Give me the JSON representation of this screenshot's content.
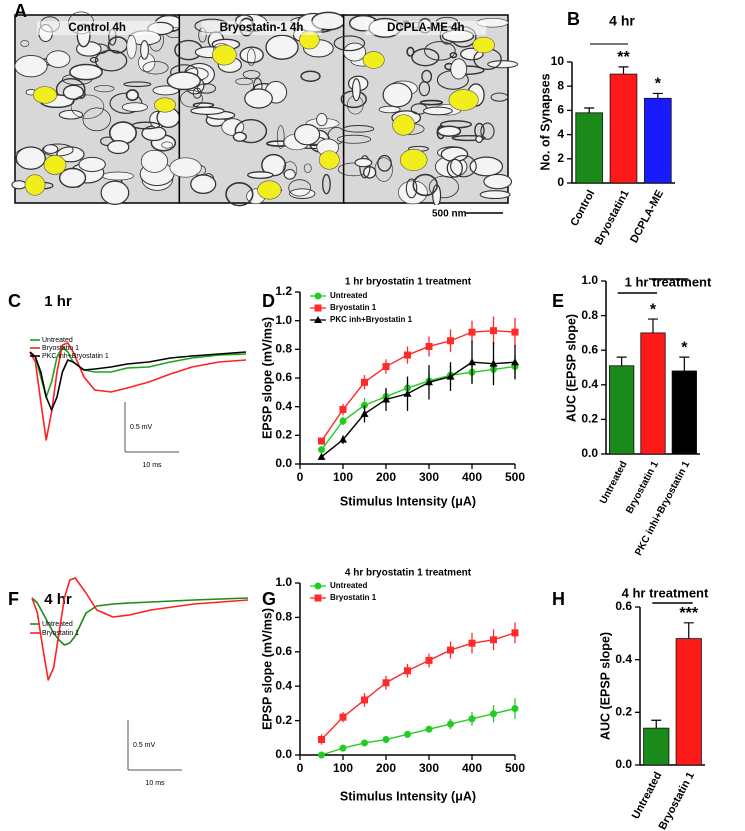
{
  "chart_data": [
    {
      "panel": "A",
      "type": "image",
      "labels": [
        "Control 4h",
        "Bryostatin-1 4h",
        "DCPLA-ME 4h"
      ],
      "scale_label": "500 nm"
    },
    {
      "panel": "B",
      "type": "bar",
      "title": "4 hr",
      "ylabel": "No. of Synapses",
      "categories": [
        "Control",
        "Bryostatin1",
        "DCPLA-ME"
      ],
      "values": [
        5.8,
        9.0,
        7.0
      ],
      "errors": [
        0.4,
        0.6,
        0.4
      ],
      "colors": [
        "#1a8a1a",
        "#ff1a1a",
        "#1a1aff"
      ],
      "value_annotations": [
        null,
        "**",
        "*"
      ],
      "ylim": [
        0,
        10
      ],
      "yticks": [
        0,
        2,
        4,
        6,
        8,
        10
      ]
    },
    {
      "panel": "C",
      "type": "trace",
      "title": "1 hr",
      "x": [
        0,
        1,
        2,
        3,
        4,
        5,
        6,
        7,
        8,
        10,
        12,
        15,
        18,
        22,
        26,
        30,
        35,
        40
      ],
      "series": [
        {
          "name": "Untreated",
          "color": "#1aa51a",
          "values": [
            0,
            -0.05,
            -0.25,
            -0.45,
            -0.3,
            -0.05,
            0.05,
            0.0,
            -0.1,
            -0.18,
            -0.2,
            -0.2,
            -0.16,
            -0.15,
            -0.1,
            -0.06,
            -0.03,
            -0.02
          ]
        },
        {
          "name": "Bryostatin 1",
          "color": "#ff2020",
          "values": [
            0,
            -0.1,
            -0.5,
            -0.88,
            -0.6,
            -0.2,
            0.07,
            0.09,
            0.0,
            -0.25,
            -0.38,
            -0.4,
            -0.36,
            -0.3,
            -0.22,
            -0.15,
            -0.1,
            -0.08
          ]
        },
        {
          "name": "PKC inh+Bryostatin 1",
          "color": "#000000",
          "values": [
            0,
            -0.05,
            -0.2,
            -0.45,
            -0.58,
            -0.45,
            -0.2,
            -0.08,
            -0.1,
            -0.18,
            -0.17,
            -0.15,
            -0.12,
            -0.1,
            -0.06,
            -0.04,
            -0.02,
            0.0
          ]
        }
      ],
      "scale_bars": [
        {
          "value": 0.5,
          "label": "0.5 mV"
        },
        {
          "value": 10,
          "label": "10 ms"
        }
      ]
    },
    {
      "panel": "D",
      "type": "line",
      "title": "1 hr bryostatin 1 treatment",
      "ylabel": "EPSP slope (mV/ms)",
      "xlabel": "Stimulus Intensity (μA)",
      "x": [
        50,
        100,
        150,
        200,
        250,
        300,
        350,
        400,
        450,
        500
      ],
      "series": [
        {
          "name": "Untreated",
          "color": "#22cc22",
          "marker": "circle",
          "values": [
            0.1,
            0.3,
            0.41,
            0.47,
            0.53,
            0.58,
            0.62,
            0.64,
            0.66,
            0.68
          ],
          "errors": [
            0.02,
            0.03,
            0.05,
            0.05,
            0.05,
            0.06,
            0.07,
            0.08,
            0.08,
            0.08
          ]
        },
        {
          "name": "Bryostatin 1",
          "color": "#ff2a2a",
          "marker": "square",
          "values": [
            0.16,
            0.38,
            0.57,
            0.68,
            0.76,
            0.82,
            0.86,
            0.92,
            0.93,
            0.92
          ],
          "errors": [
            0.02,
            0.04,
            0.05,
            0.05,
            0.06,
            0.07,
            0.08,
            0.08,
            0.1,
            0.1
          ]
        },
        {
          "name": "PKC inh+Bryostatin 1",
          "color": "#000000",
          "marker": "triangle",
          "values": [
            0.05,
            0.17,
            0.35,
            0.45,
            0.49,
            0.57,
            0.61,
            0.71,
            0.7,
            0.71
          ],
          "errors": [
            0.02,
            0.03,
            0.06,
            0.08,
            0.12,
            0.12,
            0.1,
            0.15,
            0.15,
            0.12
          ]
        }
      ],
      "xlim": [
        0,
        500
      ],
      "xticks": [
        0,
        100,
        200,
        300,
        400,
        500
      ],
      "ylim": [
        0,
        1.2
      ],
      "yticks": [
        {
          "value": 0,
          "label": "0.0"
        },
        0.2,
        0.4,
        0.6,
        0.8,
        {
          "value": 1,
          "label": "1.0"
        },
        1.2
      ]
    },
    {
      "panel": "E",
      "type": "bar",
      "title": "1 hr treatment",
      "ylabel": "AUC (EPSP slope)",
      "categories": [
        "Untreated",
        "Bryostatin 1",
        "PKC inhi+Bryostatin 1"
      ],
      "values": [
        0.51,
        0.7,
        0.48
      ],
      "errors": [
        0.05,
        0.08,
        0.08
      ],
      "colors": [
        "#1a8a1a",
        "#ff1a1a",
        "#000000"
      ],
      "value_annotations": [
        null,
        "*",
        "*"
      ],
      "ylim": [
        0,
        1
      ],
      "yticks": [
        {
          "value": 0,
          "label": "0.0"
        },
        0.2,
        0.4,
        0.6,
        0.8,
        {
          "value": 1,
          "label": "1.0"
        }
      ]
    },
    {
      "panel": "F",
      "type": "trace",
      "title": "4 hr",
      "x": [
        0,
        1,
        2,
        3,
        4,
        5,
        6,
        7,
        8,
        10,
        12,
        15,
        18,
        22,
        26,
        30,
        35,
        40
      ],
      "series": [
        {
          "name": "Untreated",
          "color": "#1a8a1a",
          "values": [
            0,
            -0.05,
            -0.15,
            -0.25,
            -0.35,
            -0.42,
            -0.47,
            -0.45,
            -0.38,
            -0.15,
            -0.08,
            -0.06,
            -0.05,
            -0.04,
            -0.03,
            -0.02,
            -0.01,
            0.0
          ]
        },
        {
          "name": "Bryostatin 1",
          "color": "#ff2020",
          "values": [
            0,
            -0.15,
            -0.5,
            -0.82,
            -0.7,
            -0.35,
            0.0,
            0.18,
            0.2,
            0.05,
            -0.12,
            -0.19,
            -0.17,
            -0.12,
            -0.09,
            -0.06,
            -0.04,
            -0.02
          ]
        }
      ],
      "scale_bars": [
        {
          "value": 0.5,
          "label": "0.5 mV"
        },
        {
          "value": 10,
          "label": "10 ms"
        }
      ]
    },
    {
      "panel": "G",
      "type": "line",
      "title": "4 hr bryostatin 1 treatment",
      "ylabel": "EPSP slope (mV/ms)",
      "xlabel": "Stimulus Intensity (μA)",
      "x": [
        50,
        100,
        150,
        200,
        250,
        300,
        350,
        400,
        450,
        500
      ],
      "series": [
        {
          "name": "Untreated",
          "color": "#22cc22",
          "marker": "circle",
          "values": [
            0.0,
            0.04,
            0.07,
            0.09,
            0.12,
            0.15,
            0.18,
            0.21,
            0.24,
            0.27
          ],
          "errors": [
            0.01,
            0.02,
            0.02,
            0.02,
            0.02,
            0.02,
            0.03,
            0.04,
            0.05,
            0.06
          ]
        },
        {
          "name": "Bryostatin 1",
          "color": "#ff2a2a",
          "marker": "square",
          "values": [
            0.09,
            0.22,
            0.32,
            0.42,
            0.49,
            0.55,
            0.61,
            0.65,
            0.67,
            0.71
          ],
          "errors": [
            0.03,
            0.03,
            0.04,
            0.04,
            0.04,
            0.04,
            0.05,
            0.06,
            0.06,
            0.06
          ]
        }
      ],
      "xlim": [
        0,
        500
      ],
      "xticks": [
        0,
        100,
        200,
        300,
        400,
        500
      ],
      "ylim": [
        0,
        1
      ],
      "yticks": [
        {
          "value": 0,
          "label": "0.0"
        },
        0.2,
        0.4,
        0.6,
        0.8,
        {
          "value": 1,
          "label": "1.0"
        }
      ]
    },
    {
      "panel": "H",
      "type": "bar",
      "title": "4 hr treatment",
      "ylabel": "AUC (EPSP slope)",
      "categories": [
        "Untreated",
        "Bryostatin 1"
      ],
      "values": [
        0.14,
        0.48
      ],
      "errors": [
        0.03,
        0.06
      ],
      "colors": [
        "#1a8a1a",
        "#ff1a1a"
      ],
      "value_annotations": [
        null,
        "***"
      ],
      "ylim": [
        0,
        0.6
      ],
      "yticks": [
        {
          "value": 0,
          "label": "0.0"
        },
        0.2,
        0.4,
        0.6
      ]
    }
  ]
}
